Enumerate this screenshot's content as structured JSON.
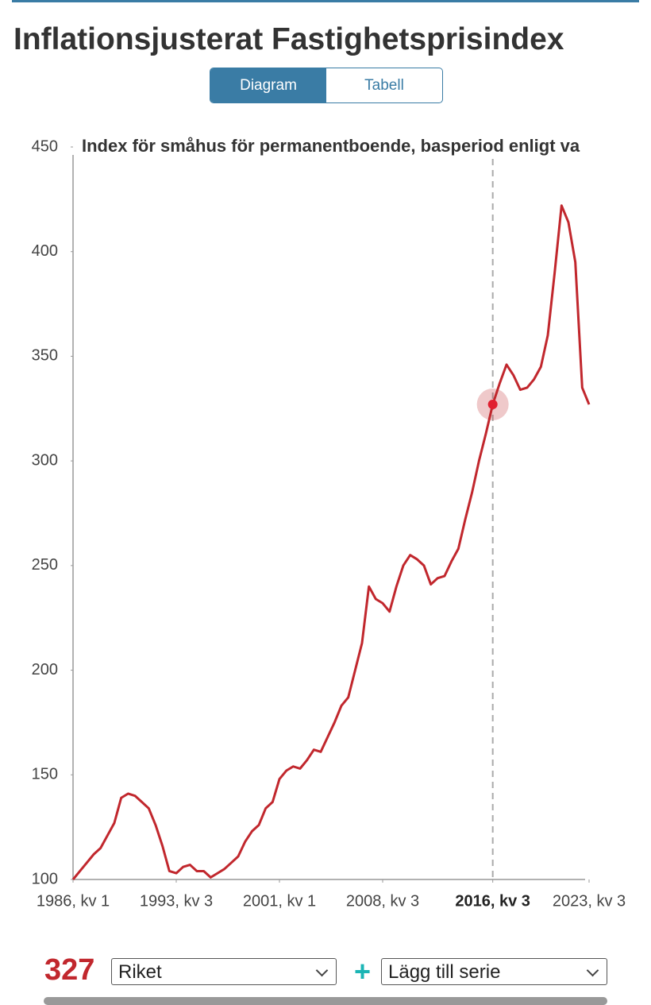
{
  "header": {
    "title": "Inflationsjusterat Fastighetsprisindex"
  },
  "tabs": [
    "Diagram",
    "Tabell"
  ],
  "chart_data": {
    "type": "line",
    "title": "Index för småhus för permanentboende, basperiod enligt va",
    "x": [
      1986,
      1986.5,
      1987,
      1987.5,
      1988,
      1988.5,
      1989,
      1989.5,
      1990,
      1990.5,
      1991,
      1991.5,
      1992,
      1992.5,
      1993,
      1993.5,
      1994,
      1994.5,
      1995,
      1995.5,
      1996,
      1996.5,
      1997,
      1997.5,
      1998,
      1998.5,
      1999,
      1999.5,
      2000,
      2000.5,
      2001,
      2001.5,
      2002,
      2002.5,
      2003,
      2003.5,
      2004,
      2004.5,
      2005,
      2005.5,
      2006,
      2006.5,
      2007,
      2007.5,
      2008,
      2008.5,
      2009,
      2009.5,
      2010,
      2010.5,
      2011,
      2011.5,
      2012,
      2012.5,
      2013,
      2013.5,
      2014,
      2014.5,
      2015,
      2015.5,
      2016,
      2016.5,
      2017,
      2017.5,
      2018,
      2018.5,
      2019,
      2019.5,
      2020,
      2020.5,
      2021,
      2021.5,
      2022,
      2022.5,
      2023,
      2023.5
    ],
    "series": [
      {
        "name": "Riket",
        "color": "#c1272d",
        "values": [
          100,
          104,
          108,
          112,
          115,
          121,
          127,
          139,
          141,
          140,
          137,
          134,
          126,
          116,
          104,
          103,
          106,
          107,
          104,
          104,
          101,
          103,
          105,
          108,
          111,
          118,
          123,
          126,
          134,
          137,
          148,
          152,
          154,
          153,
          157,
          162,
          161,
          168,
          175,
          183,
          187,
          200,
          213,
          240,
          234,
          232,
          228,
          240,
          250,
          255,
          253,
          250,
          241,
          244,
          245,
          252,
          258,
          272,
          285,
          300,
          313,
          327,
          337,
          346,
          341,
          334,
          335,
          339,
          345,
          360,
          390,
          422,
          414,
          395,
          335,
          327
        ]
      }
    ],
    "xlim": [
      1986,
      2023.5
    ],
    "xticks": [
      {
        "value": 1986,
        "label": "1986, kv 1"
      },
      {
        "value": 1993.5,
        "label": "1993, kv 3"
      },
      {
        "value": 2001,
        "label": "2001, kv 1"
      },
      {
        "value": 2008.5,
        "label": "2008, kv 3"
      },
      {
        "value": 2016.5,
        "label": "2016, kv 3"
      },
      {
        "value": 2023.5,
        "label": "2023, kv 3"
      }
    ],
    "ylim": [
      100,
      450
    ],
    "yticks": [
      100,
      150,
      200,
      250,
      300,
      350,
      400,
      450
    ],
    "crosshair_x": 2016.5
  },
  "controls": {
    "current_value": 327,
    "series_select": "Riket",
    "add_series": "Lägg till serie",
    "add_icon": "+"
  }
}
